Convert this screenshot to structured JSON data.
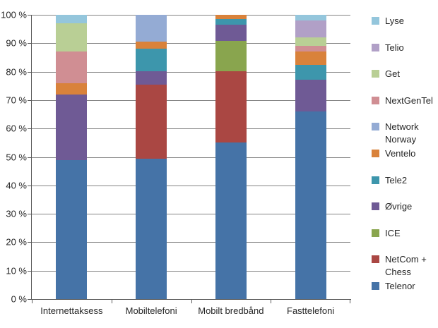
{
  "chart_data": {
    "type": "bar",
    "subtype": "stacked-100-percent",
    "title": "",
    "xlabel": "",
    "ylabel": "",
    "ylim": [
      0,
      100
    ],
    "grid": true,
    "legend_position": "right",
    "y_ticks": [
      "0 %",
      "10 %",
      "20 %",
      "30 %",
      "40 %",
      "50 %",
      "60 %",
      "70 %",
      "80 %",
      "90 %",
      "100 %"
    ],
    "categories": [
      "Internettaksess",
      "Mobiltelefoni",
      "Mobilt bredbånd",
      "Fasttelefoni"
    ],
    "series": [
      {
        "name": "Telenor",
        "color": "#4573A7",
        "values": [
          49,
          49.5,
          55,
          66
        ]
      },
      {
        "name": "NetCom + Chess",
        "color": "#AA4743",
        "values": [
          0,
          26,
          25.1,
          0
        ]
      },
      {
        "name": "ICE",
        "color": "#89A54E",
        "values": [
          0,
          0,
          10.8,
          0
        ]
      },
      {
        "name": "Øvrige",
        "color": "#6F5A95",
        "values": [
          23,
          4.6,
          5.6,
          11.1
        ]
      },
      {
        "name": "Tele2",
        "color": "#3D96AC",
        "values": [
          0,
          7.9,
          2.1,
          5.4
        ]
      },
      {
        "name": "Ventelo",
        "color": "#D9823B",
        "values": [
          4,
          2.7,
          1.4,
          4.5
        ]
      },
      {
        "name": "Network Norway",
        "color": "#94ABD4",
        "values": [
          0,
          9.3,
          0,
          0
        ]
      },
      {
        "name": "NextGenTel",
        "color": "#D08E93",
        "values": [
          11,
          0,
          0,
          2.1
        ]
      },
      {
        "name": "Get",
        "color": "#B9CF95",
        "values": [
          10,
          0,
          0,
          2.9
        ]
      },
      {
        "name": "Telio",
        "color": "#B1A0C7",
        "values": [
          0,
          0,
          0,
          6
        ]
      },
      {
        "name": "Lyse",
        "color": "#94C6DC",
        "values": [
          3,
          0,
          0,
          2
        ]
      }
    ],
    "legend_order_top_to_bottom": [
      "Lyse",
      "Telio",
      "Get",
      "NextGenTel",
      "Network Norway",
      "Ventelo",
      "Tele2",
      "Øvrige",
      "ICE",
      "NetCom + Chess",
      "Telenor"
    ]
  }
}
